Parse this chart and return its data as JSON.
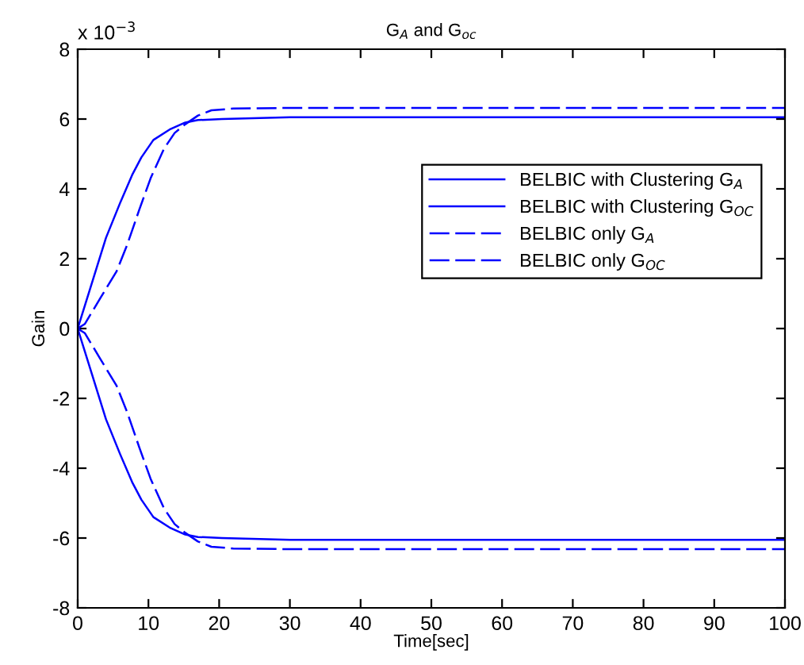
{
  "chart_data": {
    "type": "line",
    "title": "G$_{A}$ and G$_{oc}$",
    "xlabel": "Time[sec]",
    "ylabel": "Gain",
    "annotations": [
      "x 10$^{−3}$"
    ],
    "xlim": [
      0,
      100
    ],
    "xticks": [
      0,
      10,
      20,
      30,
      40,
      50,
      60,
      70,
      80,
      90,
      100
    ],
    "ylim": [
      -8,
      8
    ],
    "yticks": [
      -8,
      -6,
      -4,
      -2,
      0,
      2,
      4,
      6,
      8
    ],
    "grid": false,
    "legend": "top right",
    "marker": "none",
    "series": [
      {
        "name": "BELBIC with Clustering G$_{A}$",
        "color": "#0000ff",
        "line_style": "solid",
        "x": [
          0,
          2,
          4,
          6,
          7.7,
          9,
          10.7,
          13,
          15.2,
          17,
          20.4,
          30,
          100
        ],
        "values": [
          0,
          1.3,
          2.6,
          3.6,
          4.4,
          4.9,
          5.4,
          5.7,
          5.9,
          5.97,
          6.0,
          6.05,
          6.05
        ]
      },
      {
        "name": "BELBIC with Clustering G$_{OC}$",
        "color": "#0000ff",
        "line_style": "solid",
        "x": [
          0,
          2,
          4,
          6,
          7.7,
          9,
          10.7,
          13,
          15.2,
          17,
          20.4,
          30,
          100
        ],
        "values": [
          0,
          -1.3,
          -2.6,
          -3.6,
          -4.4,
          -4.9,
          -5.4,
          -5.7,
          -5.9,
          -5.97,
          -6.0,
          -6.05,
          -6.05
        ]
      },
      {
        "name": "BELBIC only G$_{A}$",
        "color": "#0000ff",
        "line_style": "dashed",
        "x": [
          0,
          1,
          3.2,
          5.5,
          7,
          8.7,
          10.3,
          12.2,
          13.7,
          15.2,
          17,
          18.9,
          22,
          30,
          100
        ],
        "values": [
          0,
          0.13,
          0.87,
          1.64,
          2.4,
          3.4,
          4.3,
          5.15,
          5.6,
          5.85,
          6.1,
          6.25,
          6.3,
          6.32,
          6.32
        ]
      },
      {
        "name": "BELBIC only G$_{OC}$",
        "color": "#0000ff",
        "line_style": "dashed",
        "x": [
          0,
          1,
          3.2,
          5.5,
          7,
          8.7,
          10.3,
          12.2,
          13.7,
          15.2,
          17,
          18.9,
          22,
          30,
          100
        ],
        "values": [
          0,
          -0.13,
          -0.87,
          -1.64,
          -2.4,
          -3.4,
          -4.3,
          -5.15,
          -5.6,
          -5.85,
          -6.1,
          -6.25,
          -6.3,
          -6.32,
          -6.32
        ]
      }
    ]
  }
}
